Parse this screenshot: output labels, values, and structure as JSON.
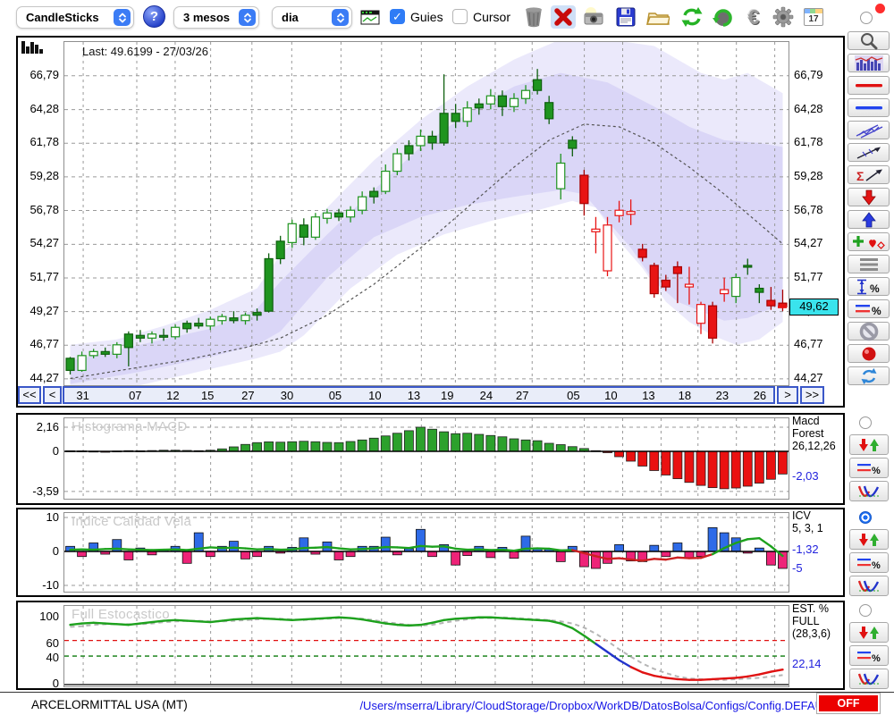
{
  "window": {
    "red_dot_color": "#ff2d2d"
  },
  "toolbar": {
    "chart_type_select": {
      "value": "CandleSticks"
    },
    "help": "?",
    "period_select": {
      "value": "3 mesos"
    },
    "interval_select": {
      "value": "dia"
    },
    "guies": {
      "label": "Guies",
      "checked": true,
      "check_glyph": "✓"
    },
    "cursor": {
      "label": "Cursor",
      "checked": false
    },
    "calendar_day": "17",
    "icons": [
      "trash-icon",
      "delete-x-icon",
      "camera-icon",
      "save-icon",
      "open-folder-icon",
      "refresh-icon",
      "undo-icon",
      "euro-icon",
      "gear-icon",
      "calendar-icon"
    ]
  },
  "main_chart": {
    "last_label": "Last: 49.6199 - 27/03/26",
    "price_labels": [
      "66,79",
      "64,28",
      "61,78",
      "59,28",
      "56,78",
      "54,27",
      "51,77",
      "49,27",
      "46,77",
      "44,27"
    ],
    "last_price_tag": "49,62",
    "nav": {
      "first": "<<",
      "prev": "<",
      "next": ">",
      "last": ">>"
    }
  },
  "panels": {
    "macd": {
      "watermark": "Histograma MACD",
      "y_top": "2,16",
      "y_zero": "0",
      "y_bottom": "-3,59",
      "name_lines": [
        "Macd",
        "Forest",
        "26,12,26"
      ],
      "value": "-2,03"
    },
    "icv": {
      "watermark": "Indice Calidad Vela",
      "y_top": "10",
      "y_zero": "0",
      "y_bottom": "-10",
      "name_lines": [
        "ICV",
        "5, 3, 1"
      ],
      "value_line": "-1,32",
      "value_bar": "-5"
    },
    "est": {
      "watermark": "Full Estocastico",
      "y_labels": [
        "100",
        "60",
        "40",
        "0"
      ],
      "name_lines": [
        "EST. %",
        "FULL",
        "(28,3,6)"
      ],
      "value": "22,14"
    }
  },
  "statusbar": {
    "symbol": "ARCELORMITTAL USA (MT)",
    "config_path": "/Users/mserra/Library/CloudStorage/Dropbox/WorkDB/DatosBolsa/Configs/Config.DEFAULT.xml",
    "off_label": "OFF"
  },
  "colors": {
    "candle_up": "#1f941f",
    "candle_down": "#e81414",
    "macd_pos": "#2ca12c",
    "macd_neg": "#ea1111",
    "icv_pos": "#2e6be8",
    "icv_neg": "#ee2378",
    "stoch_k_high": "#1da11d",
    "stoch_k_mid": "#2233cc",
    "stoch_k_low": "#e01212",
    "band": "#7c6ee1",
    "value_blue": "#2222dd",
    "tag_bg": "#3ae3ec",
    "off_bg": "#ec0000"
  },
  "chart_data": {
    "type": "candlestick",
    "title": "ARCELORMITTAL USA (MT)",
    "last_price": 49.62,
    "last_date": "27/03/26",
    "ylim": [
      43.8,
      69.3
    ],
    "price_axis": [
      66.79,
      64.28,
      61.78,
      59.28,
      56.78,
      54.27,
      51.77,
      49.27,
      46.77,
      44.27
    ],
    "x_axis": {
      "labels": [
        "31",
        "07",
        "12",
        "15",
        "27",
        "30",
        "05",
        "10",
        "13",
        "19",
        "24",
        "27",
        "05",
        "10",
        "13",
        "18",
        "23",
        "26"
      ],
      "fractions": [
        0.026,
        0.1,
        0.153,
        0.202,
        0.259,
        0.314,
        0.382,
        0.438,
        0.493,
        0.54,
        0.595,
        0.646,
        0.718,
        0.771,
        0.824,
        0.875,
        0.928,
        0.981
      ]
    },
    "candles": [
      [
        45.8,
        45.9,
        44.6,
        44.9,
        "gf"
      ],
      [
        44.9,
        46.3,
        44.8,
        46.0,
        "gh"
      ],
      [
        46.0,
        46.5,
        45.8,
        46.3,
        "gh"
      ],
      [
        46.3,
        46.6,
        45.9,
        46.1,
        "gf"
      ],
      [
        46.1,
        47.0,
        45.8,
        46.8,
        "gh"
      ],
      [
        46.6,
        47.8,
        45.2,
        47.6,
        "gf"
      ],
      [
        47.5,
        47.9,
        47.0,
        47.3,
        "gf"
      ],
      [
        47.3,
        47.8,
        46.9,
        47.6,
        "gh"
      ],
      [
        47.5,
        48.0,
        47.1,
        47.4,
        "gf"
      ],
      [
        47.4,
        48.3,
        47.2,
        48.1,
        "gh"
      ],
      [
        48.0,
        48.6,
        47.7,
        48.4,
        "gf"
      ],
      [
        48.4,
        48.8,
        48.0,
        48.2,
        "gf"
      ],
      [
        48.2,
        48.9,
        47.9,
        48.7,
        "gh"
      ],
      [
        48.6,
        49.1,
        48.3,
        48.9,
        "gh"
      ],
      [
        48.8,
        49.3,
        48.4,
        48.6,
        "gf"
      ],
      [
        48.6,
        49.2,
        48.3,
        49.0,
        "gh"
      ],
      [
        49.0,
        49.5,
        48.6,
        49.2,
        "gf"
      ],
      [
        49.3,
        53.6,
        49.2,
        53.2,
        "gf"
      ],
      [
        53.2,
        54.9,
        52.8,
        54.5,
        "gf"
      ],
      [
        54.4,
        56.1,
        54.0,
        55.8,
        "gh"
      ],
      [
        55.7,
        56.2,
        54.2,
        54.8,
        "gf"
      ],
      [
        54.8,
        56.6,
        54.6,
        56.3,
        "gh"
      ],
      [
        56.2,
        56.9,
        55.8,
        56.6,
        "gh"
      ],
      [
        56.6,
        56.9,
        56.0,
        56.3,
        "gf"
      ],
      [
        56.3,
        57.1,
        55.9,
        56.8,
        "gh"
      ],
      [
        56.8,
        58.2,
        56.5,
        57.8,
        "gh"
      ],
      [
        57.8,
        58.5,
        57.3,
        58.2,
        "gf"
      ],
      [
        58.2,
        60.2,
        58.0,
        59.7,
        "gh"
      ],
      [
        59.7,
        61.4,
        59.4,
        61.0,
        "gh"
      ],
      [
        61.0,
        62.0,
        60.5,
        61.6,
        "gf"
      ],
      [
        61.6,
        62.8,
        61.2,
        62.3,
        "gh"
      ],
      [
        62.3,
        62.7,
        61.3,
        61.8,
        "gf"
      ],
      [
        61.8,
        66.9,
        61.6,
        64.0,
        "gf"
      ],
      [
        64.0,
        64.7,
        62.9,
        63.4,
        "gf"
      ],
      [
        63.4,
        64.9,
        63.0,
        64.4,
        "gh"
      ],
      [
        64.4,
        65.1,
        63.9,
        64.7,
        "gf"
      ],
      [
        64.7,
        65.8,
        64.3,
        65.3,
        "gh"
      ],
      [
        65.3,
        65.7,
        63.8,
        64.5,
        "gf"
      ],
      [
        64.5,
        65.5,
        64.1,
        65.1,
        "gh"
      ],
      [
        65.1,
        66.1,
        64.7,
        65.7,
        "gh"
      ],
      [
        65.7,
        67.3,
        65.4,
        66.5,
        "gf"
      ],
      [
        64.8,
        65.3,
        63.2,
        63.6,
        "gf"
      ],
      [
        58.4,
        61.0,
        57.6,
        60.3,
        "gh"
      ],
      [
        61.4,
        62.3,
        60.8,
        62.0,
        "gf"
      ],
      [
        59.4,
        59.8,
        56.4,
        57.3,
        "rf"
      ],
      [
        55.4,
        56.3,
        53.6,
        55.2,
        "rh"
      ],
      [
        55.7,
        56.3,
        51.9,
        52.3,
        "rh"
      ],
      [
        56.8,
        57.5,
        55.9,
        56.4,
        "rh"
      ],
      [
        56.7,
        57.6,
        55.7,
        56.5,
        "rh"
      ],
      [
        53.9,
        54.3,
        53.0,
        53.3,
        "rf"
      ],
      [
        52.7,
        52.9,
        50.3,
        50.6,
        "rf"
      ],
      [
        51.6,
        52.0,
        50.8,
        51.1,
        "rf"
      ],
      [
        52.6,
        53.0,
        49.9,
        52.1,
        "rf"
      ],
      [
        51.3,
        52.6,
        49.8,
        51.1,
        "rh"
      ],
      [
        48.4,
        50.0,
        47.6,
        49.8,
        "rh"
      ],
      [
        49.7,
        50.0,
        46.9,
        47.3,
        "rf"
      ],
      [
        50.9,
        51.8,
        50.0,
        50.6,
        "rh"
      ],
      [
        50.4,
        52.1,
        49.9,
        51.8,
        "gh"
      ],
      [
        52.6,
        53.2,
        52.0,
        52.7,
        "gf"
      ],
      [
        51.0,
        51.3,
        49.9,
        50.7,
        "gf"
      ],
      [
        50.1,
        51.1,
        49.4,
        49.7,
        "rf"
      ],
      [
        49.9,
        50.9,
        49.3,
        49.62,
        "rf"
      ]
    ],
    "sma_keypoints": [
      [
        0,
        44.3
      ],
      [
        5,
        45.0
      ],
      [
        10,
        45.7
      ],
      [
        15,
        46.6
      ],
      [
        18,
        47.3
      ],
      [
        22,
        49.0
      ],
      [
        26,
        51.3
      ],
      [
        30,
        54.0
      ],
      [
        34,
        57.0
      ],
      [
        38,
        60.0
      ],
      [
        41,
        62.0
      ],
      [
        44,
        63.2
      ],
      [
        47,
        63.0
      ],
      [
        50,
        61.8
      ],
      [
        53,
        60.0
      ],
      [
        56,
        58.0
      ],
      [
        59,
        55.8
      ],
      [
        61,
        54.3
      ]
    ],
    "band_outer": {
      "upper_keypoints": [
        [
          0,
          46.8
        ],
        [
          4,
          47.2
        ],
        [
          8,
          48.2
        ],
        [
          12,
          49.4
        ],
        [
          16,
          51.0
        ],
        [
          18,
          53.5
        ],
        [
          22,
          57.0
        ],
        [
          26,
          60.5
        ],
        [
          30,
          63.5
        ],
        [
          34,
          66.0
        ],
        [
          38,
          68.0
        ],
        [
          42,
          69.5
        ],
        [
          46,
          69.5
        ],
        [
          50,
          69.0
        ],
        [
          52,
          68.0
        ],
        [
          54,
          67.0
        ],
        [
          56,
          66.5
        ],
        [
          58,
          67.0
        ],
        [
          60,
          66.0
        ],
        [
          61,
          65.5
        ]
      ],
      "lower_keypoints": [
        [
          0,
          42.8
        ],
        [
          4,
          43.4
        ],
        [
          8,
          44.2
        ],
        [
          12,
          45.0
        ],
        [
          16,
          45.8
        ],
        [
          18,
          46.3
        ],
        [
          20,
          47.5
        ],
        [
          24,
          51.0
        ],
        [
          28,
          53.5
        ],
        [
          32,
          55.0
        ],
        [
          36,
          56.0
        ],
        [
          40,
          56.8
        ],
        [
          43,
          57.5
        ],
        [
          45,
          57.0
        ],
        [
          47,
          54.5
        ],
        [
          49,
          52.5
        ],
        [
          51,
          50.0
        ],
        [
          53,
          48.5
        ],
        [
          55,
          47.5
        ],
        [
          57,
          46.8
        ],
        [
          59,
          47.2
        ],
        [
          61,
          48.5
        ]
      ]
    },
    "band_inner": {
      "upper_keypoints": [
        [
          0,
          45.6
        ],
        [
          6,
          46.8
        ],
        [
          12,
          48.0
        ],
        [
          16,
          49.5
        ],
        [
          18,
          51.5
        ],
        [
          22,
          55.0
        ],
        [
          26,
          58.3
        ],
        [
          30,
          61.5
        ],
        [
          34,
          64.0
        ],
        [
          38,
          66.0
        ],
        [
          42,
          67.0
        ],
        [
          46,
          66.3
        ],
        [
          50,
          64.5
        ],
        [
          53,
          63.0
        ],
        [
          56,
          62.0
        ],
        [
          59,
          61.8
        ],
        [
          61,
          61.5
        ]
      ],
      "lower_keypoints": [
        [
          0,
          43.9
        ],
        [
          6,
          44.8
        ],
        [
          12,
          45.9
        ],
        [
          16,
          46.8
        ],
        [
          18,
          47.8
        ],
        [
          22,
          51.8
        ],
        [
          26,
          54.8
        ],
        [
          30,
          56.3
        ],
        [
          34,
          57.2
        ],
        [
          38,
          57.8
        ],
        [
          42,
          58.3
        ],
        [
          44,
          58.0
        ],
        [
          46,
          56.0
        ],
        [
          48,
          54.0
        ],
        [
          50,
          51.5
        ],
        [
          52,
          50.0
        ],
        [
          54,
          49.3
        ],
        [
          56,
          48.6
        ],
        [
          58,
          48.8
        ],
        [
          60,
          49.5
        ],
        [
          61,
          49.8
        ]
      ]
    },
    "indicators": {
      "macd": {
        "type": "bar",
        "name": "Macd Forest",
        "params": "26,12,26",
        "axis": [
          2.16,
          0,
          -3.59
        ],
        "last": -2.03,
        "values": [
          0.05,
          0.04,
          0.02,
          -0.02,
          0.03,
          0.06,
          0.05,
          0.07,
          0.1,
          0.1,
          0.08,
          0.06,
          0.1,
          0.22,
          0.4,
          0.62,
          0.78,
          0.85,
          0.82,
          0.86,
          0.9,
          0.86,
          0.8,
          0.78,
          0.88,
          1.02,
          1.18,
          1.38,
          1.62,
          1.85,
          2.16,
          1.98,
          1.75,
          1.58,
          1.62,
          1.52,
          1.42,
          1.3,
          1.12,
          1.02,
          0.95,
          0.72,
          0.6,
          0.42,
          0.25,
          0.06,
          -0.12,
          -0.48,
          -0.88,
          -1.32,
          -1.72,
          -2.12,
          -2.45,
          -2.78,
          -3.05,
          -3.25,
          -3.35,
          -3.28,
          -3.12,
          -2.85,
          -2.5,
          -2.03
        ]
      },
      "icv": {
        "type": "bar+line",
        "name": "ICV",
        "params": "5, 3, 1",
        "axis": [
          10,
          0,
          -10
        ],
        "last_line": -1.32,
        "last_bar": -5,
        "bars": [
          1.5,
          -1.5,
          2.5,
          -0.8,
          3.5,
          -2.5,
          1.0,
          -1.0,
          0.5,
          1.5,
          -3.5,
          5.5,
          -1.5,
          1.5,
          3.0,
          -2.2,
          -1.5,
          1.5,
          -0.5,
          1.2,
          4.0,
          -0.8,
          2.8,
          -2.5,
          -1.5,
          1.5,
          1.5,
          4.2,
          -1.0,
          0.8,
          6.5,
          -1.5,
          2.0,
          -4.0,
          -1.2,
          1.5,
          -1.8,
          1.2,
          -2.0,
          4.5,
          1.0,
          0.8,
          -3.0,
          1.5,
          -4.5,
          -5.0,
          -3.5,
          2.0,
          -2.8,
          -3.0,
          1.8,
          -1.5,
          2.5,
          -2.0,
          -1.5,
          7.0,
          5.5,
          4.0,
          -0.5,
          1.0,
          -4.0,
          -5.0
        ],
        "line": [
          0.5,
          0.6,
          0.5,
          0.7,
          0.8,
          0.6,
          0.5,
          0.4,
          0.5,
          0.6,
          0.4,
          0.8,
          1.2,
          1.0,
          1.1,
          0.9,
          0.6,
          0.7,
          0.5,
          0.6,
          1.0,
          1.1,
          1.3,
          0.9,
          0.6,
          0.7,
          0.9,
          1.3,
          1.2,
          1.0,
          1.6,
          1.4,
          1.5,
          0.8,
          0.5,
          0.6,
          0.4,
          0.5,
          0.2,
          0.8,
          0.9,
          0.8,
          0.3,
          0.4,
          -0.5,
          -1.4,
          -2.2,
          -2.0,
          -2.4,
          -2.7,
          -2.2,
          -2.4,
          -1.8,
          -2.0,
          -1.9,
          -0.8,
          1.0,
          2.5,
          3.6,
          3.9,
          1.5,
          -1.32
        ]
      },
      "stoch": {
        "type": "line",
        "name": "EST. % FULL",
        "params": "(28,3,6)",
        "axis": [
          100,
          60,
          40,
          0
        ],
        "last": 22.14,
        "thresholds": {
          "upper": 65,
          "lower": 42
        },
        "k": [
          88,
          90,
          91,
          90,
          89,
          88,
          90,
          92,
          94,
          95,
          94,
          93,
          92,
          94,
          96,
          97,
          98,
          97,
          96,
          95,
          96,
          97,
          98,
          99,
          98,
          96,
          93,
          90,
          88,
          87,
          88,
          91,
          95,
          97,
          98,
          99,
          99,
          98,
          97,
          96,
          95,
          94,
          90,
          83,
          72,
          60,
          48,
          36,
          26,
          18,
          13,
          10,
          8,
          7,
          7,
          8,
          9,
          10,
          12,
          15,
          19,
          22.14
        ],
        "d": [
          85,
          86,
          88,
          89,
          89,
          89,
          89,
          90,
          92,
          93,
          94,
          94,
          93,
          93,
          94,
          95,
          96,
          97,
          97,
          96,
          95,
          96,
          97,
          98,
          98,
          97,
          95,
          92,
          90,
          88,
          87,
          88,
          91,
          94,
          96,
          98,
          98,
          99,
          98,
          97,
          96,
          95,
          93,
          90,
          84,
          75,
          64,
          52,
          41,
          31,
          23,
          17,
          12,
          9,
          8,
          7,
          7,
          8,
          9,
          10,
          12,
          14
        ]
      }
    }
  }
}
